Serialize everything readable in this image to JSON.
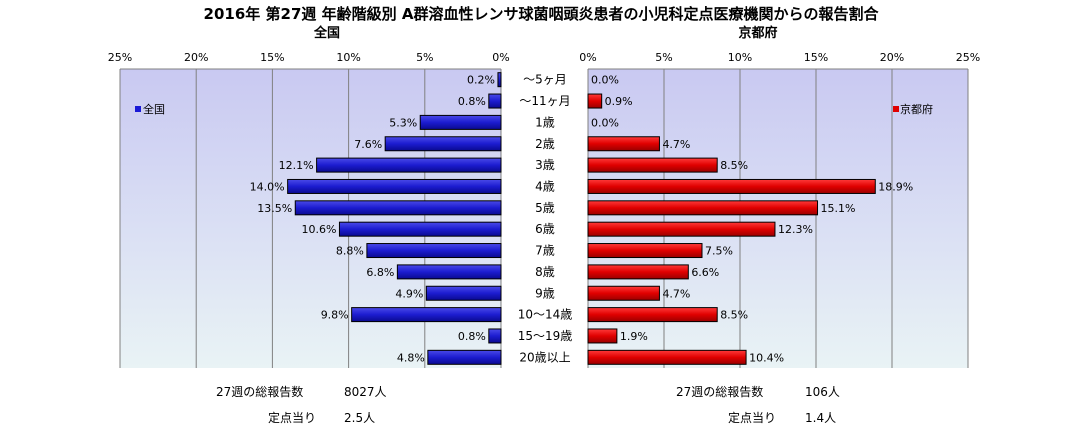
{
  "chart_data": {
    "type": "bar",
    "title": "2016年 第27週 年齢階級別 A群溶血性レンサ球菌咽頭炎患者の小児科定点医療機関からの報告割合",
    "categories": [
      "～5ヶ月",
      "～11ヶ月",
      "1歳",
      "2歳",
      "3歳",
      "4歳",
      "5歳",
      "6歳",
      "7歳",
      "8歳",
      "9歳",
      "10～14歳",
      "15～19歳",
      "20歳以上"
    ],
    "x_ticks": [
      "0%",
      "5%",
      "10%",
      "15%",
      "20%",
      "25%"
    ],
    "xlim": [
      0,
      25
    ],
    "grid": true,
    "series": [
      {
        "name": "全国",
        "panel_title": "全国",
        "color": "#1a1ad6",
        "direction": "left",
        "legend_position": "top-left",
        "values": [
          0.2,
          0.8,
          5.3,
          7.6,
          12.1,
          14.0,
          13.5,
          10.6,
          8.8,
          6.8,
          4.9,
          9.8,
          0.8,
          4.8
        ],
        "labels": [
          "0.2%",
          "0.8%",
          "5.3%",
          "7.6%",
          "12.1%",
          "14.0%",
          "13.5%",
          "10.6%",
          "8.8%",
          "6.8%",
          "4.9%",
          "9.8%",
          "0.8%",
          "4.8%"
        ]
      },
      {
        "name": "京都府",
        "panel_title": "京都府",
        "color": "#e00000",
        "direction": "right",
        "legend_position": "top-right",
        "values": [
          0.0,
          0.9,
          0.0,
          4.7,
          8.5,
          18.9,
          15.1,
          12.3,
          7.5,
          6.6,
          4.7,
          8.5,
          1.9,
          10.4
        ],
        "labels": [
          "0.0%",
          "0.9%",
          "0.0%",
          "4.7%",
          "8.5%",
          "18.9%",
          "15.1%",
          "12.3%",
          "7.5%",
          "6.6%",
          "4.7%",
          "8.5%",
          "1.9%",
          "10.4%"
        ]
      }
    ]
  },
  "footer": {
    "national_total_label": "27週の総報告数",
    "national_total_value": "8027人",
    "national_per_label": "定点当り",
    "national_per_value": "2.5人",
    "kyoto_total_label": "27週の総報告数",
    "kyoto_total_value": "106人",
    "kyoto_per_label": "定点当り",
    "kyoto_per_value": "1.4人"
  }
}
